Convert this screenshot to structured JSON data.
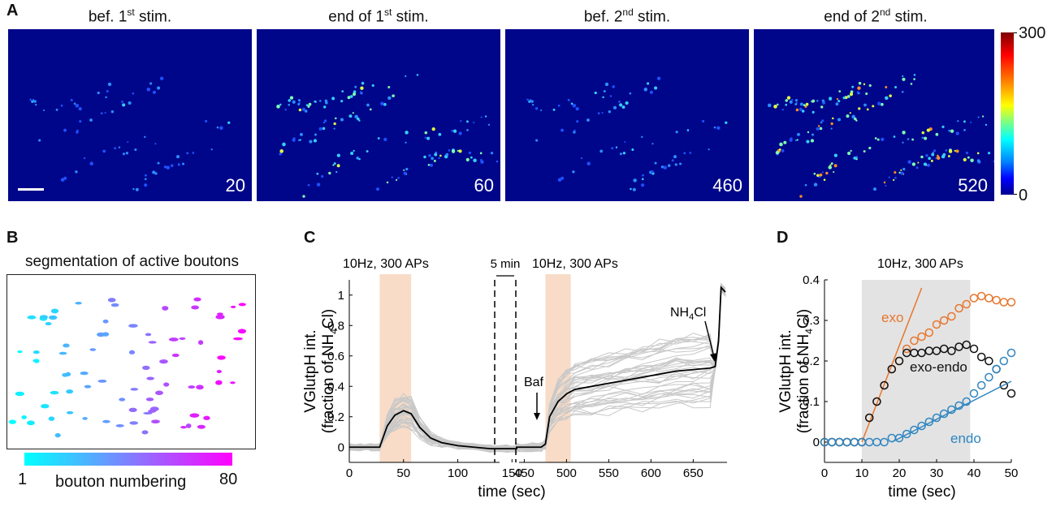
{
  "panel_a": {
    "label": "A",
    "images": [
      {
        "title_main": "bef. 1",
        "title_sup": "st",
        "title_tail": " stim.",
        "frame": "20"
      },
      {
        "title_main": "end of 1",
        "title_sup": "st",
        "title_tail": " stim.",
        "frame": "60"
      },
      {
        "title_main": "bef. 2",
        "title_sup": "nd",
        "title_tail": " stim.",
        "frame": "460"
      },
      {
        "title_main": "end of 2",
        "title_sup": "nd",
        "title_tail": " stim.",
        "frame": "520"
      }
    ],
    "colorbar": {
      "max": "300",
      "min": "0"
    }
  },
  "panel_b": {
    "label": "B",
    "title": "segmentation of active boutons",
    "bar_min": "1",
    "bar_max": "80",
    "bar_label": "bouton numbering"
  },
  "panel_c": {
    "label": "C",
    "ann_stim1": "10Hz, 300 APs",
    "ann_gap": "5 min",
    "ann_stim2": "10Hz, 300 APs",
    "ann_baf": "Baf",
    "ann_nh4_main": "NH",
    "ann_nh4_sub": "4",
    "ann_nh4_tail": "Cl"
  },
  "panel_d": {
    "label": "D",
    "ann_stim": "10Hz, 300 APs",
    "label_exo": "exo",
    "label_exo_endo": "exo-endo",
    "label_endo": "endo"
  },
  "chart_data": [
    {
      "type": "line",
      "id": "C",
      "title": "",
      "xlabel": "time (sec)",
      "ylabel_line1": "VGlutpH int.",
      "ylabel_line2_main": "(fraction of NH",
      "ylabel_line2_sub": "4",
      "ylabel_line2_tail": "Cl)",
      "ylim": [
        -0.1,
        1.1
      ],
      "yticks": [
        "0",
        "0.2",
        "0.4",
        "0.6",
        "0.8",
        "1"
      ],
      "segment1": {
        "xlim": [
          0,
          155
        ],
        "xticks": [
          "0",
          "50",
          "100",
          "150"
        ],
        "stim_window": [
          28,
          57
        ]
      },
      "segment2": {
        "xlim": [
          440,
          690
        ],
        "xticks": [
          "450",
          "500",
          "550",
          "600",
          "650"
        ],
        "stim_window": [
          475,
          505
        ],
        "baf_time": 465,
        "nh4cl_time": 675
      },
      "series": [
        {
          "name": "mean",
          "x1": [
            0,
            10,
            20,
            28,
            35,
            42,
            50,
            57,
            65,
            75,
            85,
            100,
            115,
            130,
            145,
            155
          ],
          "y1": [
            0,
            0,
            0,
            0,
            0.14,
            0.21,
            0.24,
            0.22,
            0.13,
            0.06,
            0.03,
            0.01,
            0,
            -0.01,
            -0.01,
            -0.01
          ],
          "x2": [
            440,
            460,
            470,
            475,
            480,
            490,
            500,
            510,
            530,
            550,
            570,
            590,
            610,
            630,
            650,
            670,
            676,
            680,
            683,
            688
          ],
          "y2": [
            0,
            0,
            0,
            0.02,
            0.2,
            0.3,
            0.35,
            0.38,
            0.4,
            0.42,
            0.44,
            0.46,
            0.48,
            0.5,
            0.51,
            0.52,
            0.53,
            0.7,
            1.05,
            1.02
          ]
        }
      ]
    },
    {
      "type": "scatter",
      "id": "D",
      "xlabel": "time (sec)",
      "ylabel_line1": "VGlutpH int.",
      "ylabel_line2_main": "(fraction of NH",
      "ylabel_line2_sub": "4",
      "ylabel_line2_tail": "Cl)",
      "xlim": [
        0,
        50
      ],
      "ylim": [
        -0.05,
        0.4
      ],
      "xticks": [
        "0",
        "10",
        "20",
        "30",
        "40",
        "50"
      ],
      "yticks": [
        "0",
        "0.1",
        "0.2",
        "0.3",
        "0.4"
      ],
      "stim_window": [
        10,
        39
      ],
      "series": [
        {
          "name": "exo",
          "color": "#e8762d",
          "x": [
            0,
            2,
            4,
            6,
            8,
            10,
            12,
            14,
            16,
            18,
            20,
            22,
            24,
            26,
            28,
            30,
            32,
            34,
            36,
            38,
            40,
            42,
            44,
            46,
            48,
            50
          ],
          "y": [
            0,
            0,
            0,
            0,
            0,
            0,
            0.06,
            0.1,
            0.14,
            0.18,
            0.2,
            0.23,
            0.25,
            0.26,
            0.27,
            0.29,
            0.3,
            0.31,
            0.33,
            0.34,
            0.355,
            0.36,
            0.355,
            0.35,
            0.345,
            0.345
          ],
          "fit": {
            "x": [
              10,
              26
            ],
            "y": [
              0,
              0.38
            ]
          }
        },
        {
          "name": "exo-endo",
          "color": "#111111",
          "x": [
            0,
            2,
            4,
            6,
            8,
            10,
            12,
            14,
            16,
            18,
            20,
            22,
            24,
            26,
            28,
            30,
            32,
            34,
            36,
            38,
            40,
            42,
            44,
            46,
            48,
            50
          ],
          "y": [
            0,
            0,
            0,
            0,
            0,
            0,
            0.06,
            0.1,
            0.14,
            0.18,
            0.2,
            0.22,
            0.22,
            0.22,
            0.225,
            0.225,
            0.23,
            0.225,
            0.235,
            0.24,
            0.23,
            0.21,
            0.2,
            0.18,
            0.14,
            0.12
          ]
        },
        {
          "name": "endo",
          "color": "#2f86c0",
          "x": [
            0,
            2,
            4,
            6,
            8,
            10,
            12,
            14,
            16,
            18,
            20,
            22,
            24,
            26,
            28,
            30,
            32,
            34,
            36,
            38,
            40,
            42,
            44,
            46,
            48,
            50
          ],
          "y": [
            0,
            0,
            0,
            0,
            0,
            0,
            0,
            0,
            0,
            0.01,
            0.01,
            0.02,
            0.03,
            0.04,
            0.05,
            0.06,
            0.07,
            0.08,
            0.09,
            0.1,
            0.12,
            0.14,
            0.16,
            0.18,
            0.2,
            0.22
          ],
          "fit": {
            "x": [
              18,
              50
            ],
            "y": [
              0,
              0.15
            ]
          }
        }
      ]
    }
  ]
}
